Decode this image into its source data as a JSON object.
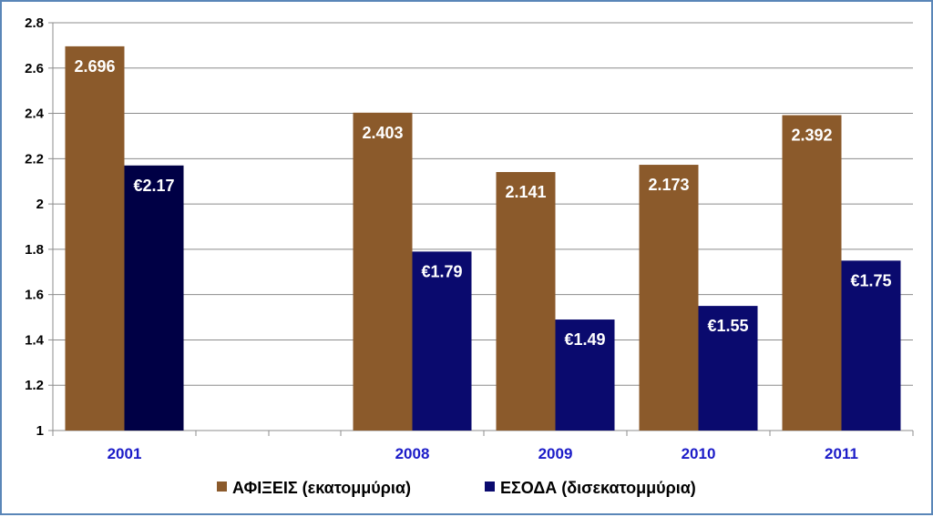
{
  "chart_data": {
    "type": "bar",
    "categories": [
      "2001",
      "",
      "",
      "2008",
      "2009",
      "2010",
      "2011"
    ],
    "series": [
      {
        "name": "ΑΦΙΞΕΙΣ (εκατομμύρια)",
        "color": "#8b5a2b",
        "values": [
          2.696,
          null,
          null,
          2.403,
          2.141,
          2.173,
          2.392
        ],
        "labels": [
          "2.696",
          "",
          "",
          "2.403",
          "2.141",
          "2.173",
          "2.392"
        ]
      },
      {
        "name": "ΕΣΟΔΑ (δισεκατομμύρια)",
        "color": "#0a0a6e",
        "values": [
          2.17,
          null,
          null,
          1.79,
          1.49,
          1.55,
          1.75
        ],
        "labels": [
          "€2.17",
          "",
          "",
          "€1.79",
          "€1.49",
          "€1.55",
          "€1.75"
        ]
      }
    ],
    "first_bar_color": "#000045",
    "ylim": [
      1,
      2.8
    ],
    "yticks": [
      "1",
      "1.2",
      "1.4",
      "1.6",
      "1.8",
      "2",
      "2.2",
      "2.4",
      "2.6",
      "2.8"
    ],
    "grid": true,
    "legend_position": "bottom",
    "title": "",
    "xlabel": "",
    "ylabel": ""
  }
}
